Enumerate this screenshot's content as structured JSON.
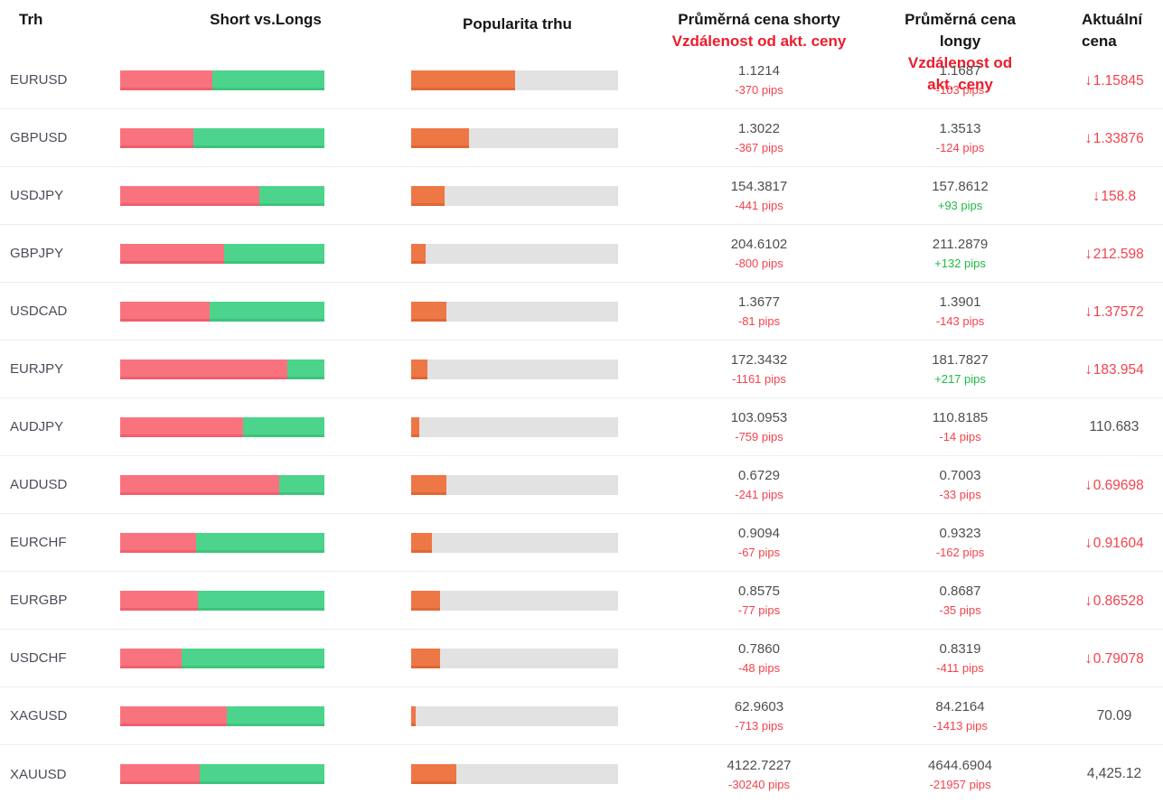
{
  "header": {
    "col_market": "Trh",
    "col_short_vs_longs": "Short vs.Longs",
    "col_popularity": "Popularita trhu",
    "col_short_price_line1": "Průměrná cena shorty",
    "col_short_price_line2": "Vzdálenost od akt. ceny",
    "col_long_price_line1": "Průměrná cena longy",
    "col_long_price_line2": "Vzdálenost od akt. ceny",
    "col_current_line1": "Aktuální",
    "col_current_line2": "cena"
  },
  "colors": {
    "shorts_bar": "#f9737f",
    "longs_bar": "#4cd48c",
    "popularity_fill": "#ee7746",
    "popularity_track": "#e2e2e2",
    "negative_text": "#f4424c",
    "positive_text": "#21ba45",
    "header_red": "#ee1b2b"
  },
  "icons": {
    "down_arrow": "↓"
  },
  "rows": [
    {
      "market": "EURUSD",
      "short_pct": 45,
      "popularity_pct": 50,
      "short_price": "1.1214",
      "short_pips": "-370 pips",
      "short_pips_dir": "neg",
      "long_price": "1.1687",
      "long_pips": "-103 pips",
      "long_pips_dir": "neg",
      "current": "1.15845",
      "current_dir": "down"
    },
    {
      "market": "GBPUSD",
      "short_pct": 36,
      "popularity_pct": 28,
      "short_price": "1.3022",
      "short_pips": "-367 pips",
      "short_pips_dir": "neg",
      "long_price": "1.3513",
      "long_pips": "-124 pips",
      "long_pips_dir": "neg",
      "current": "1.33876",
      "current_dir": "down"
    },
    {
      "market": "USDJPY",
      "short_pct": 68,
      "popularity_pct": 16,
      "short_price": "154.3817",
      "short_pips": "-441 pips",
      "short_pips_dir": "neg",
      "long_price": "157.8612",
      "long_pips": "+93 pips",
      "long_pips_dir": "pos",
      "current": "158.8",
      "current_dir": "down"
    },
    {
      "market": "GBPJPY",
      "short_pct": 51,
      "popularity_pct": 7,
      "short_price": "204.6102",
      "short_pips": "-800 pips",
      "short_pips_dir": "neg",
      "long_price": "211.2879",
      "long_pips": "+132 pips",
      "long_pips_dir": "pos",
      "current": "212.598",
      "current_dir": "down"
    },
    {
      "market": "USDCAD",
      "short_pct": 44,
      "popularity_pct": 17,
      "short_price": "1.3677",
      "short_pips": "-81 pips",
      "short_pips_dir": "neg",
      "long_price": "1.3901",
      "long_pips": "-143 pips",
      "long_pips_dir": "neg",
      "current": "1.37572",
      "current_dir": "down"
    },
    {
      "market": "EURJPY",
      "short_pct": 82,
      "popularity_pct": 8,
      "short_price": "172.3432",
      "short_pips": "-1161 pips",
      "short_pips_dir": "neg",
      "long_price": "181.7827",
      "long_pips": "+217 pips",
      "long_pips_dir": "pos",
      "current": "183.954",
      "current_dir": "down"
    },
    {
      "market": "AUDJPY",
      "short_pct": 60,
      "popularity_pct": 4,
      "short_price": "103.0953",
      "short_pips": "-759 pips",
      "short_pips_dir": "neg",
      "long_price": "110.8185",
      "long_pips": "-14 pips",
      "long_pips_dir": "neg",
      "current": "110.683",
      "current_dir": "none"
    },
    {
      "market": "AUDUSD",
      "short_pct": 78,
      "popularity_pct": 17,
      "short_price": "0.6729",
      "short_pips": "-241 pips",
      "short_pips_dir": "neg",
      "long_price": "0.7003",
      "long_pips": "-33 pips",
      "long_pips_dir": "neg",
      "current": "0.69698",
      "current_dir": "down"
    },
    {
      "market": "EURCHF",
      "short_pct": 37,
      "popularity_pct": 10,
      "short_price": "0.9094",
      "short_pips": "-67 pips",
      "short_pips_dir": "neg",
      "long_price": "0.9323",
      "long_pips": "-162 pips",
      "long_pips_dir": "neg",
      "current": "0.91604",
      "current_dir": "down"
    },
    {
      "market": "EURGBP",
      "short_pct": 38,
      "popularity_pct": 14,
      "short_price": "0.8575",
      "short_pips": "-77 pips",
      "short_pips_dir": "neg",
      "long_price": "0.8687",
      "long_pips": "-35 pips",
      "long_pips_dir": "neg",
      "current": "0.86528",
      "current_dir": "down"
    },
    {
      "market": "USDCHF",
      "short_pct": 30,
      "popularity_pct": 14,
      "short_price": "0.7860",
      "short_pips": "-48 pips",
      "short_pips_dir": "neg",
      "long_price": "0.8319",
      "long_pips": "-411 pips",
      "long_pips_dir": "neg",
      "current": "0.79078",
      "current_dir": "down"
    },
    {
      "market": "XAGUSD",
      "short_pct": 52,
      "popularity_pct": 2,
      "short_price": "62.9603",
      "short_pips": "-713 pips",
      "short_pips_dir": "neg",
      "long_price": "84.2164",
      "long_pips": "-1413 pips",
      "long_pips_dir": "neg",
      "current": "70.09",
      "current_dir": "none"
    },
    {
      "market": "XAUUSD",
      "short_pct": 39,
      "popularity_pct": 22,
      "short_price": "4122.7227",
      "short_pips": "-30240 pips",
      "short_pips_dir": "neg",
      "long_price": "4644.6904",
      "long_pips": "-21957 pips",
      "long_pips_dir": "neg",
      "current": "4,425.12",
      "current_dir": "none"
    }
  ]
}
